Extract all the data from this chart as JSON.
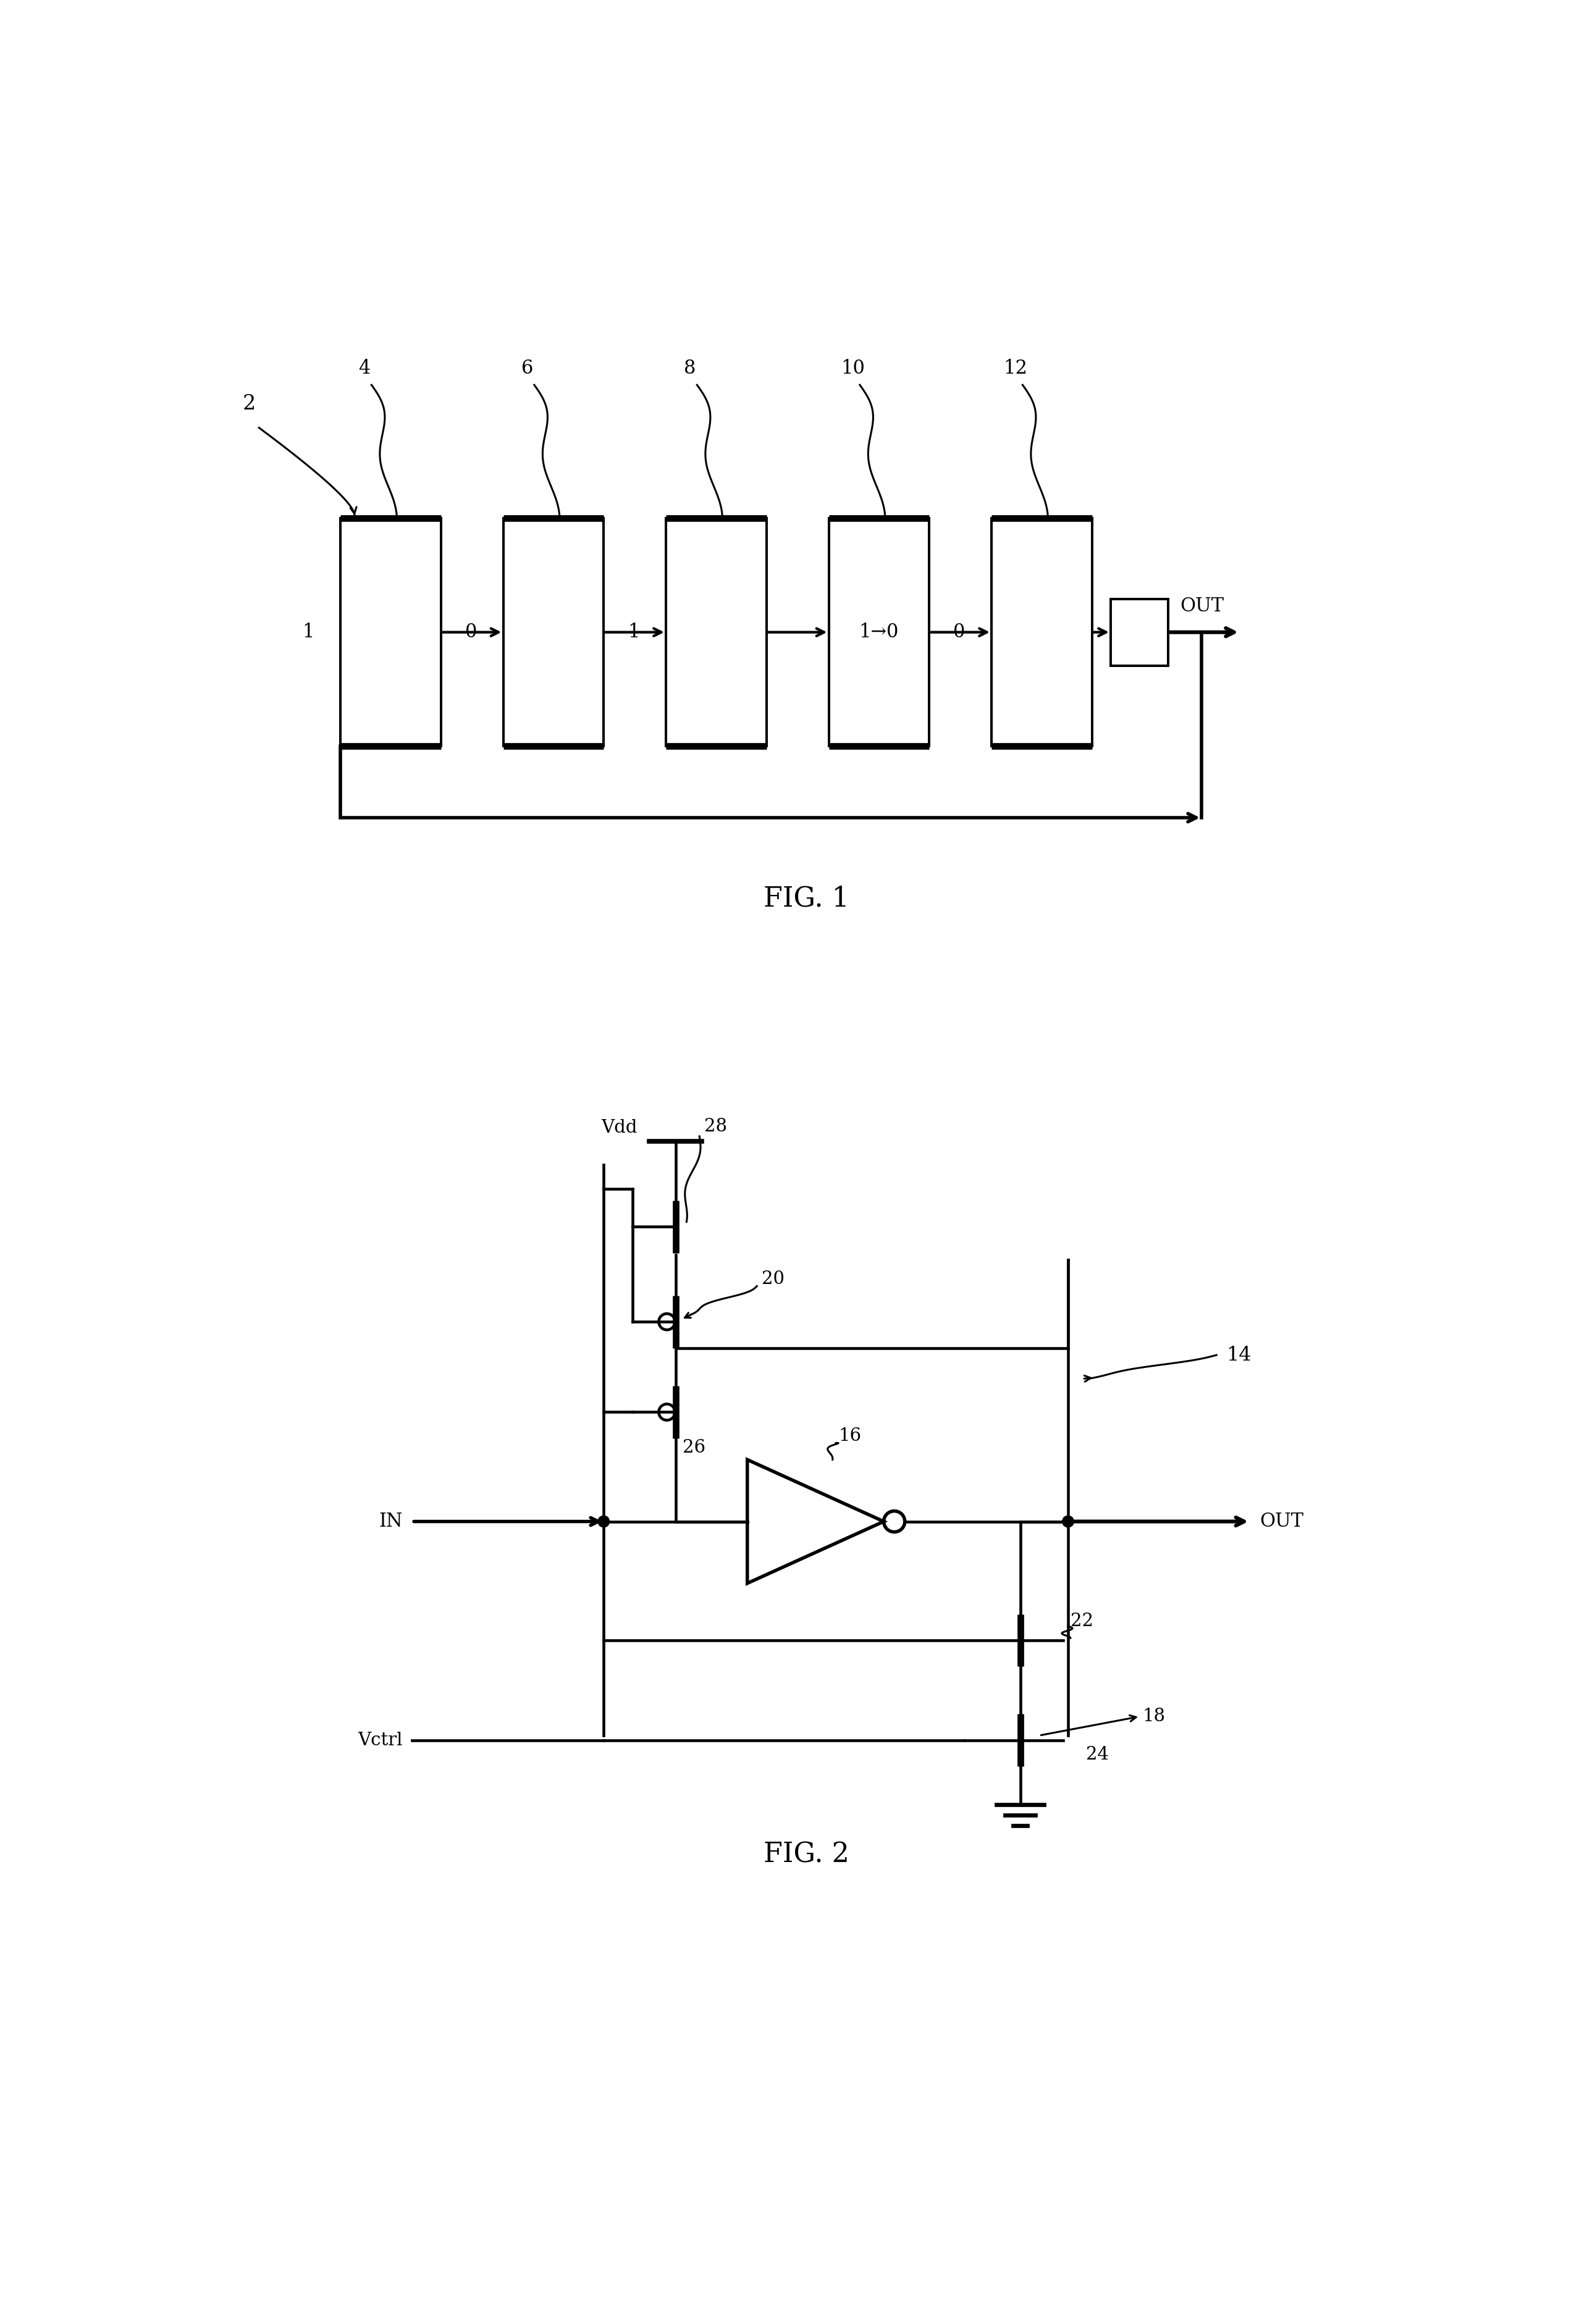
{
  "fig1": {
    "label": "2",
    "stages": [
      {
        "num": "4",
        "state": "1"
      },
      {
        "num": "6",
        "state": "0"
      },
      {
        "num": "8",
        "state": "1"
      },
      {
        "num": "10",
        "state": "1→0"
      },
      {
        "num": "12",
        "state": "0"
      }
    ],
    "caption": "FIG. 1"
  },
  "fig2": {
    "caption": "FIG. 2",
    "label_main": "14",
    "label_inv": "16",
    "label_accel": "18",
    "label_pmos_top": "20",
    "label_nmos_bot": "22",
    "label_nmos_ctrl": "24",
    "label_pmos_mid": "26",
    "label_pmos_vdd": "28"
  },
  "bg_color": "#ffffff",
  "line_color": "#000000"
}
